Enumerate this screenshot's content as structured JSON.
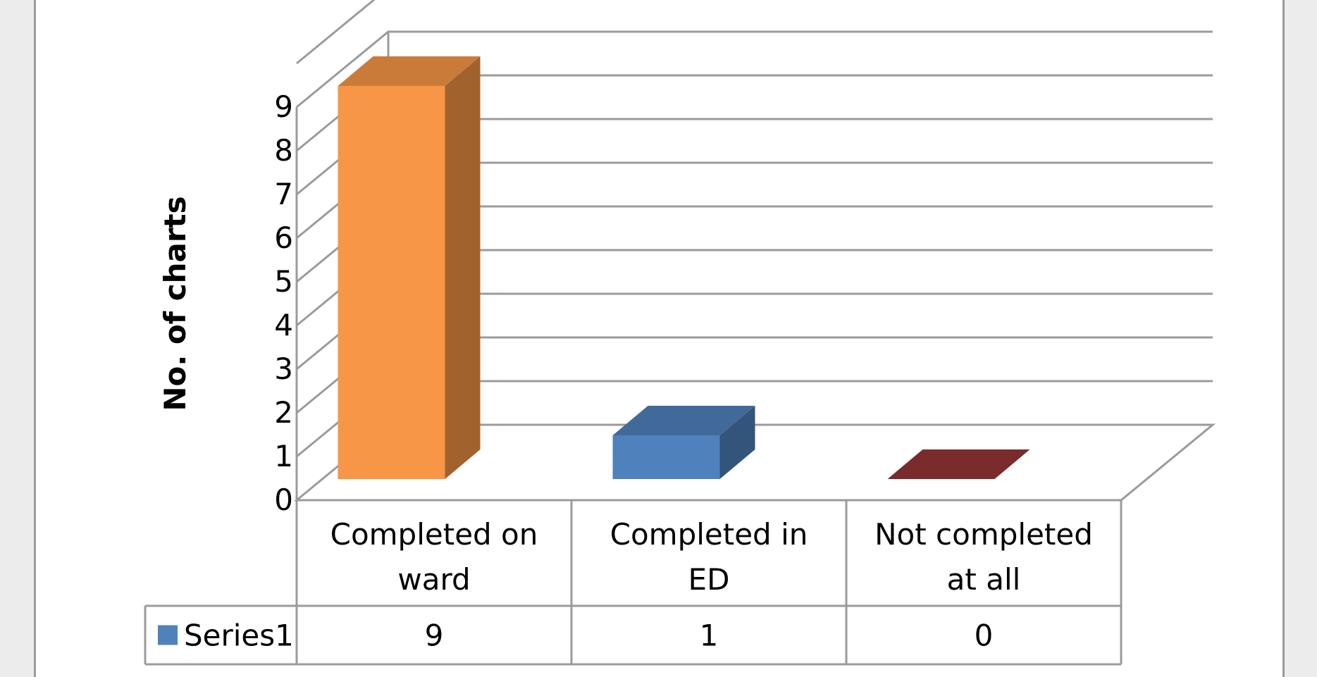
{
  "chart_data": {
    "type": "bar",
    "title": "",
    "ylabel": "No. of charts",
    "xlabel": "",
    "categories": [
      "Completed on ward",
      "Completed in ED",
      "Not completed at all"
    ],
    "category_lines": [
      [
        "Completed on",
        "ward"
      ],
      [
        "Completed in",
        "ED"
      ],
      [
        "Not completed",
        "at all"
      ]
    ],
    "series": [
      {
        "name": "Series1",
        "values": [
          9,
          1,
          0
        ],
        "value_labels": [
          "9",
          "1",
          "0"
        ]
      }
    ],
    "point_colors": [
      "#f79646",
      "#4f81bd",
      "#943634"
    ],
    "yticks": [
      "0",
      "1",
      "2",
      "3",
      "4",
      "5",
      "6",
      "7",
      "8",
      "9"
    ],
    "ylim": [
      0,
      9
    ],
    "grid": true,
    "three_d": true,
    "data_table": true,
    "legend_key_color": "#4f81bd"
  }
}
